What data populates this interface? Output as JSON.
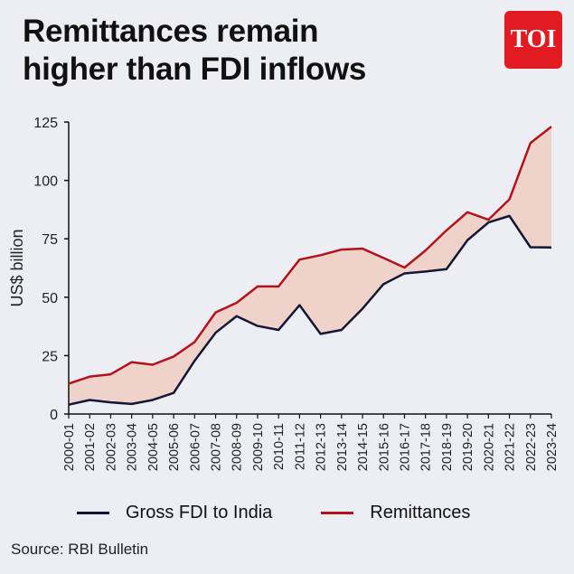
{
  "title_line1": "Remittances remain",
  "title_line2": "higher than FDI inflows",
  "logo_text": "TOI",
  "source": "Source: RBI Bulletin",
  "chart_data": {
    "type": "line",
    "ylabel": "US$ billion",
    "ylim": [
      0,
      125
    ],
    "yticks": [
      0,
      25,
      50,
      75,
      100,
      125
    ],
    "legend_position": "bottom",
    "grid": false,
    "categories": [
      "2000-01",
      "2001-02",
      "2002-03",
      "2003-04",
      "2004-05",
      "2005-06",
      "2006-07",
      "2007-08",
      "2008-09",
      "2009-10",
      "2010-11",
      "2011-12",
      "2012-13",
      "2013-14",
      "2014-15",
      "2015-16",
      "2016-17",
      "2017-18",
      "2018-19",
      "2019-20",
      "2020-21",
      "2021-22",
      "2022-23",
      "2023-24"
    ],
    "series": [
      {
        "name": "Gross FDI to India",
        "color": "#131735",
        "values": [
          4,
          6,
          5,
          4.3,
          6,
          9,
          22.8,
          34.8,
          41.9,
          37.7,
          36,
          46.6,
          34.3,
          36,
          45.1,
          55.6,
          60.2,
          61,
          62,
          74.4,
          82,
          84.8,
          71.4,
          71.3
        ]
      },
      {
        "name": "Remittances",
        "color": "#b3121b",
        "values": [
          13,
          16,
          17,
          22.2,
          21.1,
          24.6,
          30.8,
          43.5,
          47.6,
          54.6,
          54.6,
          66.1,
          68,
          70.4,
          70.8,
          66.8,
          62.7,
          70,
          78.6,
          86.4,
          83.2,
          91.9,
          116,
          123
        ]
      }
    ],
    "fill_between_color": "#efd3cb"
  }
}
